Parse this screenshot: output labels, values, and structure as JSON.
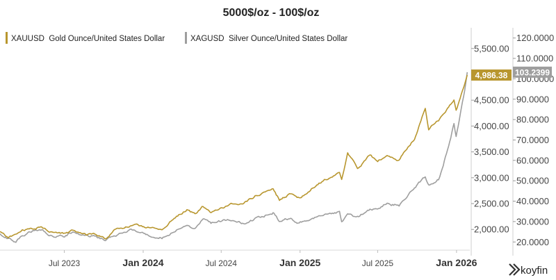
{
  "chart_data": {
    "type": "line",
    "title": "5000$/oz - 100$/oz",
    "x_ticks": [
      "Jul 2023",
      "Jan 2024",
      "Jul 2024",
      "Jan 2025",
      "Jul 2025",
      "Jan 2026"
    ],
    "x_range": [
      "2023-02-01",
      "2026-02-01"
    ],
    "y_left": {
      "ticks": [
        "2,000.00",
        "2,500.00",
        "3,000.00",
        "3,500.00",
        "4,000.00",
        "4,500.00",
        "5,500.00"
      ],
      "range": [
        1600,
        5900
      ]
    },
    "y_right": {
      "ticks": [
        "20.0000",
        "30.0000",
        "40.0000",
        "50.0000",
        "60.0000",
        "70.0000",
        "80.0000",
        "90.0000",
        "100.0000",
        "110.0000",
        "120.0000"
      ],
      "range": [
        16,
        125
      ]
    },
    "series": [
      {
        "name": "XAUUSD  Gold Ounce/United States Dollar",
        "axis": "left",
        "color": "#b8962e",
        "last_label": "4,986.38",
        "points": [
          [
            "2023-02-01",
            1950
          ],
          [
            "2023-02-20",
            1835
          ],
          [
            "2023-03-10",
            1900
          ],
          [
            "2023-03-25",
            1980
          ],
          [
            "2023-04-15",
            2000
          ],
          [
            "2023-05-04",
            2050
          ],
          [
            "2023-05-30",
            1960
          ],
          [
            "2023-06-29",
            1910
          ],
          [
            "2023-07-20",
            1970
          ],
          [
            "2023-08-20",
            1890
          ],
          [
            "2023-09-10",
            1920
          ],
          [
            "2023-10-05",
            1820
          ],
          [
            "2023-10-27",
            2000
          ],
          [
            "2023-12-04",
            2070
          ],
          [
            "2023-12-28",
            2065
          ],
          [
            "2024-02-14",
            1990
          ],
          [
            "2024-03-08",
            2180
          ],
          [
            "2024-04-12",
            2390
          ],
          [
            "2024-05-01",
            2300
          ],
          [
            "2024-05-20",
            2440
          ],
          [
            "2024-06-07",
            2300
          ],
          [
            "2024-07-16",
            2470
          ],
          [
            "2024-08-20",
            2510
          ],
          [
            "2024-09-26",
            2680
          ],
          [
            "2024-10-30",
            2790
          ],
          [
            "2024-11-14",
            2570
          ],
          [
            "2024-12-10",
            2700
          ],
          [
            "2024-12-30",
            2610
          ],
          [
            "2025-01-30",
            2800
          ],
          [
            "2025-02-24",
            2950
          ],
          [
            "2025-03-20",
            3050
          ],
          [
            "2025-04-03",
            3080
          ],
          [
            "2025-04-08",
            2970
          ],
          [
            "2025-04-22",
            3480
          ],
          [
            "2025-05-15",
            3180
          ],
          [
            "2025-06-13",
            3430
          ],
          [
            "2025-07-01",
            3330
          ],
          [
            "2025-07-23",
            3420
          ],
          [
            "2025-08-20",
            3330
          ],
          [
            "2025-09-02",
            3530
          ],
          [
            "2025-09-25",
            3750
          ],
          [
            "2025-10-20",
            4360
          ],
          [
            "2025-10-28",
            3950
          ],
          [
            "2025-11-20",
            4100
          ],
          [
            "2025-12-01",
            4230
          ],
          [
            "2025-12-26",
            4530
          ],
          [
            "2025-12-31",
            4310
          ],
          [
            "2026-01-12",
            4600
          ],
          [
            "2026-01-20",
            4780
          ],
          [
            "2026-01-26",
            4986
          ]
        ]
      },
      {
        "name": "XAGUSD  Silver Ounce/United States Dollar",
        "axis": "right",
        "color": "#9e9e9e",
        "last_label": "103.2399",
        "points": [
          [
            "2023-02-01",
            23.8
          ],
          [
            "2023-02-20",
            21.8
          ],
          [
            "2023-03-10",
            20.2
          ],
          [
            "2023-03-25",
            22.8
          ],
          [
            "2023-04-15",
            25.2
          ],
          [
            "2023-05-04",
            26.0
          ],
          [
            "2023-05-30",
            23.4
          ],
          [
            "2023-06-29",
            22.5
          ],
          [
            "2023-07-20",
            25.0
          ],
          [
            "2023-08-20",
            22.8
          ],
          [
            "2023-09-10",
            23.2
          ],
          [
            "2023-10-05",
            21.0
          ],
          [
            "2023-10-27",
            23.3
          ],
          [
            "2023-12-04",
            25.5
          ],
          [
            "2023-12-28",
            24.1
          ],
          [
            "2024-02-14",
            22.3
          ],
          [
            "2024-03-08",
            24.5
          ],
          [
            "2024-04-12",
            28.5
          ],
          [
            "2024-05-01",
            26.5
          ],
          [
            "2024-05-20",
            31.5
          ],
          [
            "2024-06-07",
            29.0
          ],
          [
            "2024-07-16",
            31.0
          ],
          [
            "2024-08-20",
            29.0
          ],
          [
            "2024-09-26",
            32.0
          ],
          [
            "2024-10-30",
            34.5
          ],
          [
            "2024-11-14",
            30.0
          ],
          [
            "2024-12-10",
            32.0
          ],
          [
            "2024-12-30",
            29.0
          ],
          [
            "2025-01-30",
            32.0
          ],
          [
            "2025-02-24",
            32.5
          ],
          [
            "2025-03-20",
            34.0
          ],
          [
            "2025-04-03",
            34.5
          ],
          [
            "2025-04-08",
            29.5
          ],
          [
            "2025-04-22",
            33.0
          ],
          [
            "2025-05-15",
            32.0
          ],
          [
            "2025-06-13",
            36.0
          ],
          [
            "2025-07-01",
            36.0
          ],
          [
            "2025-07-23",
            39.0
          ],
          [
            "2025-08-20",
            38.0
          ],
          [
            "2025-09-02",
            41.0
          ],
          [
            "2025-09-25",
            46.0
          ],
          [
            "2025-10-20",
            52.0
          ],
          [
            "2025-10-28",
            48.0
          ],
          [
            "2025-11-20",
            51.0
          ],
          [
            "2025-12-01",
            57.0
          ],
          [
            "2025-12-26",
            78.0
          ],
          [
            "2025-12-31",
            72.0
          ],
          [
            "2026-01-12",
            85.0
          ],
          [
            "2026-01-20",
            94.0
          ],
          [
            "2026-01-26",
            103.24
          ]
        ]
      }
    ]
  },
  "brand": {
    "name": "koyfin"
  }
}
